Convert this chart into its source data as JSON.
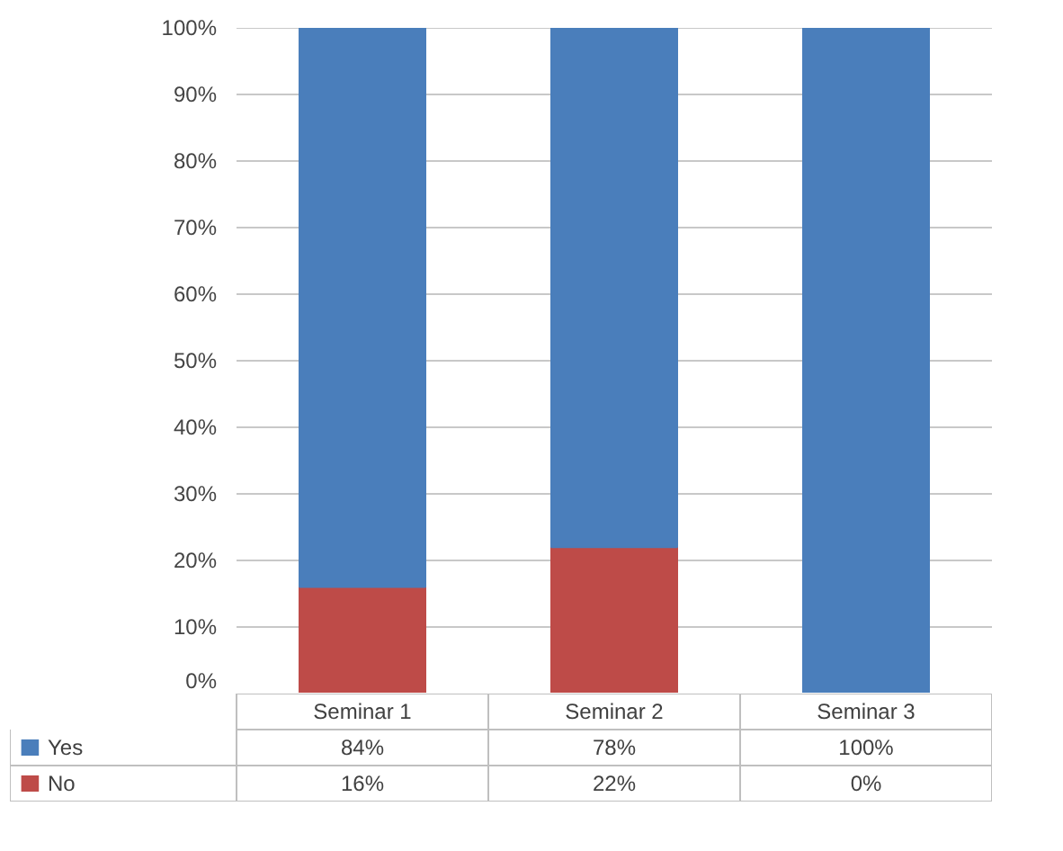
{
  "chart_data": {
    "type": "bar",
    "stacked": true,
    "categories": [
      "Seminar 1",
      "Seminar 2",
      "Seminar 3"
    ],
    "series": [
      {
        "name": "No",
        "color": "#be4b48",
        "values": [
          16,
          22,
          0
        ],
        "value_labels": [
          "16%",
          "22%",
          "0%"
        ]
      },
      {
        "name": "Yes",
        "color": "#4a7ebb",
        "values": [
          84,
          78,
          100
        ],
        "value_labels": [
          "84%",
          "78%",
          "100%"
        ]
      }
    ],
    "ylim": [
      0,
      100
    ],
    "yticks": [
      {
        "value": 0,
        "label": "0%"
      },
      {
        "value": 10,
        "label": "10%"
      },
      {
        "value": 20,
        "label": "20%"
      },
      {
        "value": 30,
        "label": "30%"
      },
      {
        "value": 40,
        "label": "40%"
      },
      {
        "value": 50,
        "label": "50%"
      },
      {
        "value": 60,
        "label": "60%"
      },
      {
        "value": 70,
        "label": "70%"
      },
      {
        "value": 80,
        "label": "80%"
      },
      {
        "value": 90,
        "label": "90%"
      },
      {
        "value": 100,
        "label": "100%"
      }
    ],
    "grid": "y",
    "legend": "bottom"
  }
}
